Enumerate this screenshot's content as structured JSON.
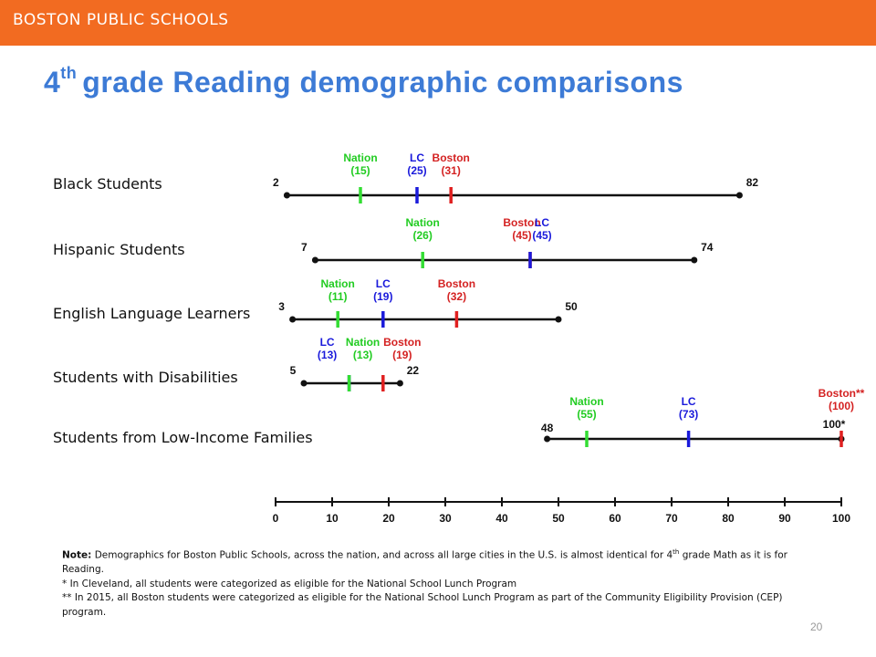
{
  "header": {
    "org_name": "BOSTON PUBLIC SCHOOLS",
    "brand_color": "#f26b21"
  },
  "title": {
    "prefix": "4",
    "sup": "th",
    "rest": "grade Reading demographic comparisons",
    "color": "#3d7bd6"
  },
  "colors": {
    "nation": "#33dd33",
    "lc": "#1a1adb",
    "boston": "#e02020",
    "line": "#111111",
    "boston_label": "#d42222",
    "nation_label": "#22cc22"
  },
  "chart_data": {
    "type": "range-marker",
    "xlim": [
      0,
      100
    ],
    "x_ticks": [
      "0",
      "10",
      "20",
      "30",
      "40",
      "50",
      "60",
      "70",
      "80",
      "90",
      "100"
    ],
    "rows": [
      {
        "label": "Black Students",
        "min": 2,
        "max": 82,
        "min_label": "2",
        "max_label": "82",
        "markers": [
          {
            "series": "Nation",
            "value": 15,
            "name": "Nation",
            "value_label": "(15)"
          },
          {
            "series": "LC",
            "value": 25,
            "name": "LC",
            "value_label": "(25)"
          },
          {
            "series": "Boston",
            "value": 31,
            "name": "Boston",
            "value_label": "(31)"
          }
        ]
      },
      {
        "label": "Hispanic Students",
        "min": 7,
        "max": 74,
        "min_label": "7",
        "max_label": "74",
        "markers": [
          {
            "series": "Nation",
            "value": 26,
            "name": "Nation",
            "value_label": "(26)"
          },
          {
            "series": "Boston",
            "value": 45,
            "name": "Boston",
            "value_label": "(45)"
          },
          {
            "series": "LC",
            "value": 45,
            "name": "LC",
            "value_label": "(45)"
          }
        ]
      },
      {
        "label": "English Language Learners",
        "min": 3,
        "max": 50,
        "min_label": "3",
        "max_label": "50",
        "markers": [
          {
            "series": "Nation",
            "value": 11,
            "name": "Nation",
            "value_label": "(11)"
          },
          {
            "series": "LC",
            "value": 19,
            "name": "LC",
            "value_label": "(19)"
          },
          {
            "series": "Boston",
            "value": 32,
            "name": "Boston",
            "value_label": "(32)"
          }
        ]
      },
      {
        "label": "Students with Disabilities",
        "min": 5,
        "max": 22,
        "min_label": "5",
        "max_label": "22",
        "markers": [
          {
            "series": "LC",
            "value": 13,
            "name": "LC",
            "value_label": "(13)"
          },
          {
            "series": "Nation",
            "value": 13,
            "name": "Nation",
            "value_label": "(13)"
          },
          {
            "series": "Boston",
            "value": 19,
            "name": "Boston",
            "value_label": "(19)"
          }
        ]
      },
      {
        "label": "Students from Low-Income Families",
        "min": 48,
        "max": 100,
        "min_label": "48",
        "max_label": "100*",
        "markers": [
          {
            "series": "Nation",
            "value": 55,
            "name": "Nation",
            "value_label": "(55)"
          },
          {
            "series": "LC",
            "value": 73,
            "name": "LC",
            "value_label": "(73)"
          },
          {
            "series": "Boston",
            "value": 100,
            "name": "Boston**",
            "value_label": "(100)"
          }
        ]
      }
    ]
  },
  "note": {
    "bold": "Note:",
    "line1_a": "Demographics for Boston Public Schools, across the nation, and across all large cities in the U.S. is almost identical for 4",
    "line1_sup": "th",
    "line1_b": "grade Math as it is for Reading.",
    "line2": "*   In Cleveland, all students were categorized as eligible for the National School Lunch Program",
    "line3": "** In 2015,  all Boston students were categorized as eligible for the National School Lunch Program as part of the Community Eligibility Provision (CEP) program."
  },
  "page_number": "20"
}
